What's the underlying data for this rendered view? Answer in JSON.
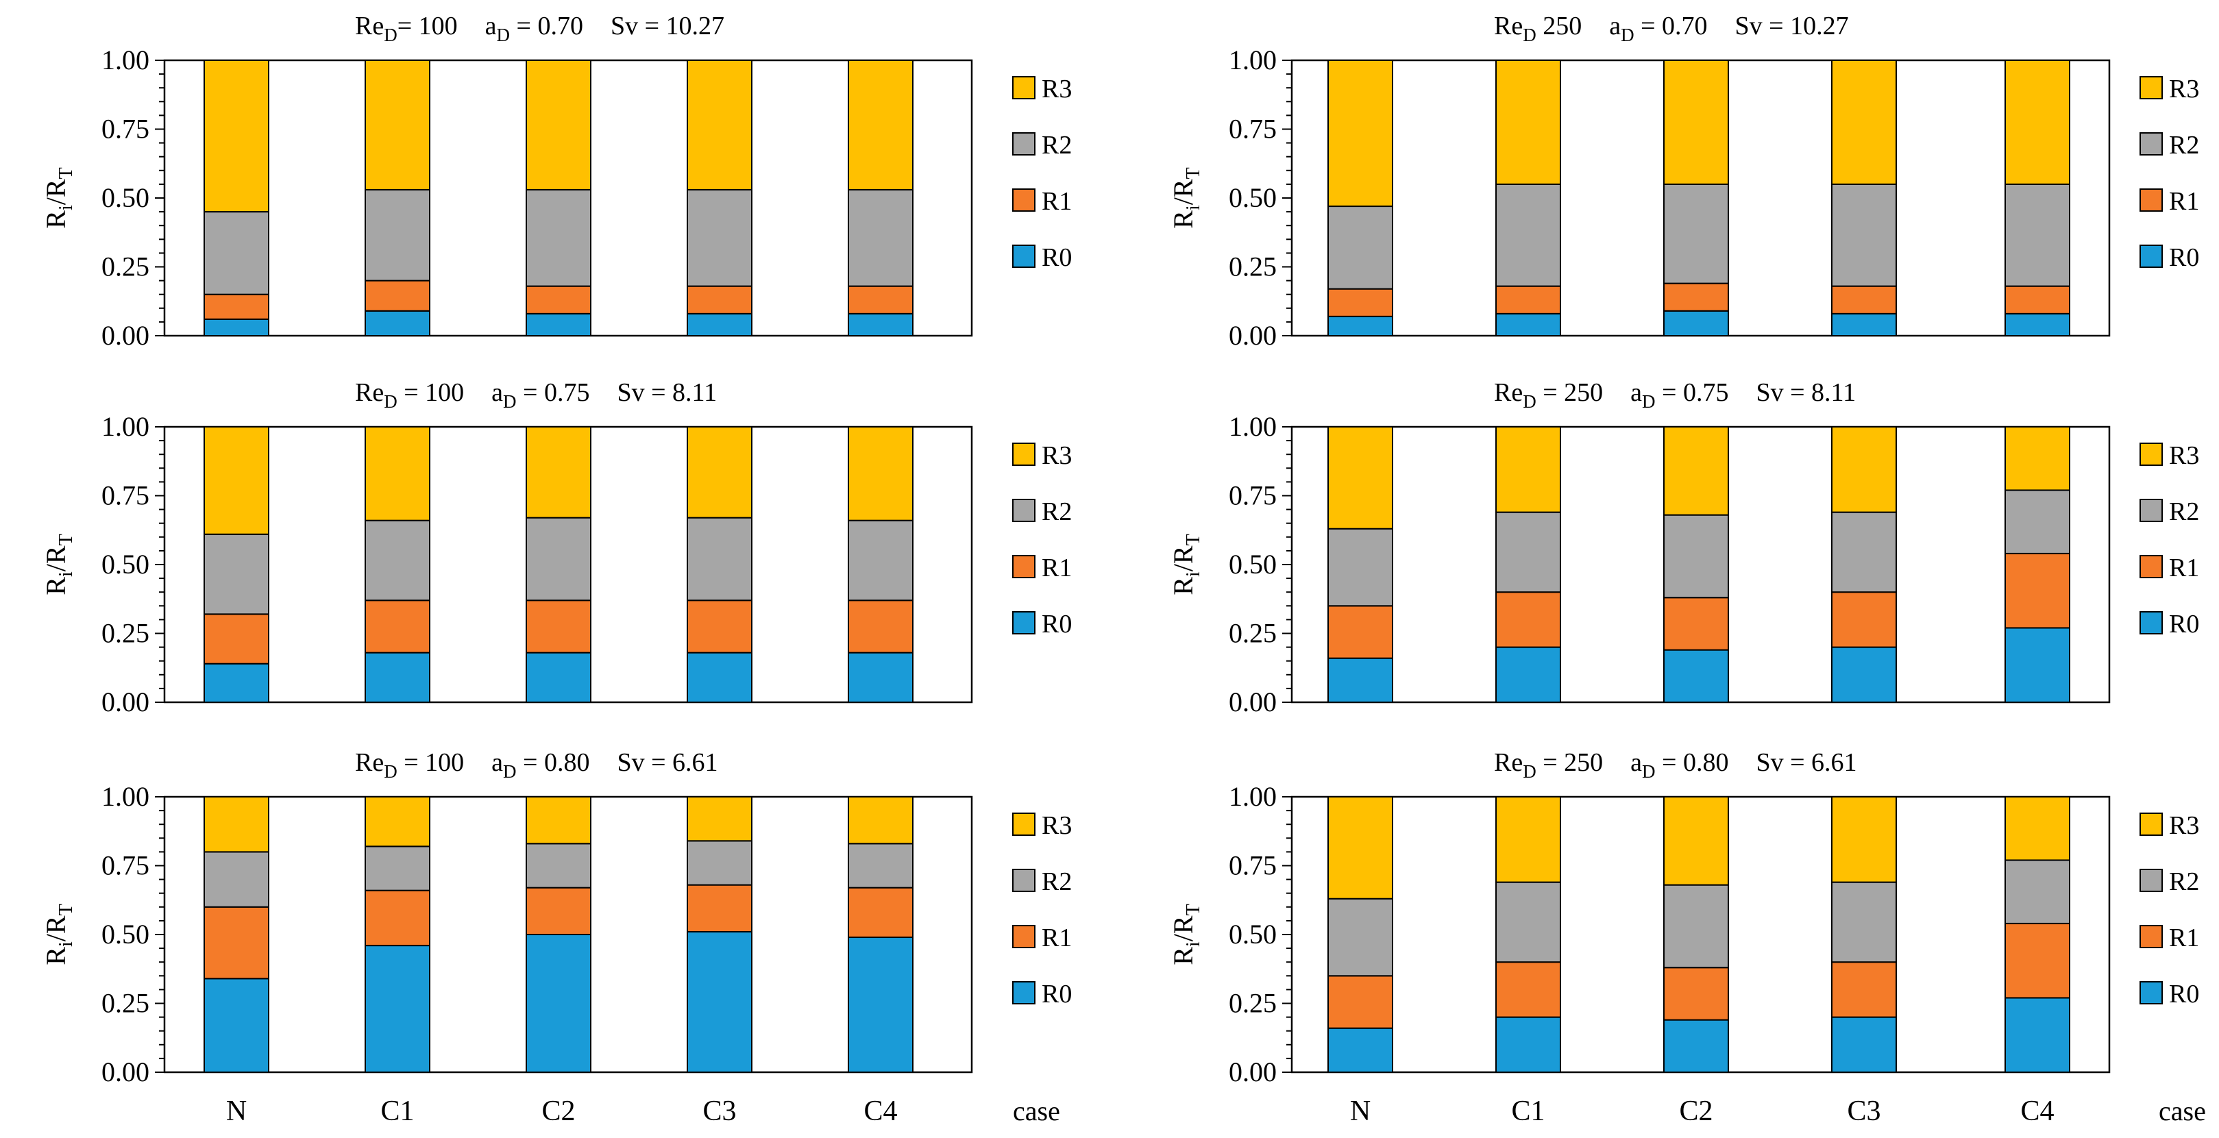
{
  "axis": {
    "ylabel_main": "R",
    "ylabel_i": "i",
    "ylabel_slash": "/R",
    "ylabel_t": "T",
    "xlabel": "case",
    "yticks": [
      "0.00",
      "0.25",
      "0.50",
      "0.75",
      "1.00"
    ]
  },
  "legend": [
    "R3",
    "R2",
    "R1",
    "R0"
  ],
  "colors": {
    "R0": "#1A9BD7",
    "R1": "#F47B29",
    "R2": "#A6A6A6",
    "R3": "#FFC000"
  },
  "chart_data": [
    {
      "type": "bar",
      "stacked": true,
      "title_parts": {
        "re_base": "Re",
        "re_sub": "D",
        "re_val": "= 100",
        "a_base": "a",
        "a_sub": "D",
        "a_val": " = 0.70",
        "sv": "Sv = 10.27"
      },
      "categories": [
        "N",
        "C1",
        "C2",
        "C3",
        "C4"
      ],
      "series": [
        {
          "name": "R0",
          "values": [
            0.06,
            0.09,
            0.08,
            0.08,
            0.08
          ]
        },
        {
          "name": "R1",
          "values": [
            0.09,
            0.11,
            0.1,
            0.1,
            0.1
          ]
        },
        {
          "name": "R2",
          "values": [
            0.3,
            0.33,
            0.35,
            0.35,
            0.35
          ]
        },
        {
          "name": "R3",
          "values": [
            0.55,
            0.47,
            0.47,
            0.47,
            0.47
          ]
        }
      ],
      "ylim": [
        0,
        1
      ]
    },
    {
      "type": "bar",
      "stacked": true,
      "title_parts": {
        "re_base": "Re",
        "re_sub": "D",
        "re_val": " 250",
        "a_base": "a",
        "a_sub": "D",
        "a_val": " = 0.70",
        "sv": "Sv = 10.27"
      },
      "categories": [
        "N",
        "C1",
        "C2",
        "C3",
        "C4"
      ],
      "series": [
        {
          "name": "R0",
          "values": [
            0.07,
            0.08,
            0.09,
            0.08,
            0.08
          ]
        },
        {
          "name": "R1",
          "values": [
            0.1,
            0.1,
            0.1,
            0.1,
            0.1
          ]
        },
        {
          "name": "R2",
          "values": [
            0.3,
            0.37,
            0.36,
            0.37,
            0.37
          ]
        },
        {
          "name": "R3",
          "values": [
            0.53,
            0.45,
            0.45,
            0.45,
            0.45
          ]
        }
      ],
      "ylim": [
        0,
        1
      ]
    },
    {
      "type": "bar",
      "stacked": true,
      "title_parts": {
        "re_base": "Re",
        "re_sub": "D",
        "re_val": " = 100",
        "a_base": "a",
        "a_sub": "D",
        "a_val": " = 0.75",
        "sv": "Sv = 8.11"
      },
      "categories": [
        "N",
        "C1",
        "C2",
        "C3",
        "C4"
      ],
      "series": [
        {
          "name": "R0",
          "values": [
            0.14,
            0.18,
            0.18,
            0.18,
            0.18
          ]
        },
        {
          "name": "R1",
          "values": [
            0.18,
            0.19,
            0.19,
            0.19,
            0.19
          ]
        },
        {
          "name": "R2",
          "values": [
            0.29,
            0.29,
            0.3,
            0.3,
            0.29
          ]
        },
        {
          "name": "R3",
          "values": [
            0.39,
            0.34,
            0.33,
            0.33,
            0.34
          ]
        }
      ],
      "ylim": [
        0,
        1
      ]
    },
    {
      "type": "bar",
      "stacked": true,
      "title_parts": {
        "re_base": "Re",
        "re_sub": "D",
        "re_val": " = 250",
        "a_base": "a",
        "a_sub": "D",
        "a_val": " = 0.75",
        "sv": "Sv = 8.11"
      },
      "categories": [
        "N",
        "C1",
        "C2",
        "C3",
        "C4"
      ],
      "series": [
        {
          "name": "R0",
          "values": [
            0.16,
            0.2,
            0.19,
            0.2,
            0.27
          ]
        },
        {
          "name": "R1",
          "values": [
            0.19,
            0.2,
            0.19,
            0.2,
            0.27
          ]
        },
        {
          "name": "R2",
          "values": [
            0.28,
            0.29,
            0.3,
            0.29,
            0.23
          ]
        },
        {
          "name": "R3",
          "values": [
            0.37,
            0.31,
            0.32,
            0.31,
            0.23
          ]
        }
      ],
      "ylim": [
        0,
        1
      ]
    },
    {
      "type": "bar",
      "stacked": true,
      "title_parts": {
        "re_base": "Re",
        "re_sub": "D",
        "re_val": " = 100",
        "a_base": "a",
        "a_sub": "D",
        "a_val": " = 0.80",
        "sv": "Sv = 6.61"
      },
      "categories": [
        "N",
        "C1",
        "C2",
        "C3",
        "C4"
      ],
      "series": [
        {
          "name": "R0",
          "values": [
            0.34,
            0.46,
            0.5,
            0.51,
            0.49
          ]
        },
        {
          "name": "R1",
          "values": [
            0.26,
            0.2,
            0.17,
            0.17,
            0.18
          ]
        },
        {
          "name": "R2",
          "values": [
            0.2,
            0.16,
            0.16,
            0.16,
            0.16
          ]
        },
        {
          "name": "R3",
          "values": [
            0.2,
            0.18,
            0.17,
            0.16,
            0.17
          ]
        }
      ],
      "ylim": [
        0,
        1
      ]
    },
    {
      "type": "bar",
      "stacked": true,
      "title_parts": {
        "re_base": "Re",
        "re_sub": "D",
        "re_val": " = 250",
        "a_base": "a",
        "a_sub": "D",
        "a_val": " = 0.80",
        "sv": "Sv = 6.61"
      },
      "categories": [
        "N",
        "C1",
        "C2",
        "C3",
        "C4"
      ],
      "series": [
        {
          "name": "R0",
          "values": [
            0.16,
            0.2,
            0.19,
            0.2,
            0.27
          ]
        },
        {
          "name": "R1",
          "values": [
            0.19,
            0.2,
            0.19,
            0.2,
            0.27
          ]
        },
        {
          "name": "R2",
          "values": [
            0.28,
            0.29,
            0.3,
            0.29,
            0.23
          ]
        },
        {
          "name": "R3",
          "values": [
            0.37,
            0.31,
            0.32,
            0.31,
            0.23
          ]
        }
      ],
      "ylim": [
        0,
        1
      ]
    }
  ]
}
